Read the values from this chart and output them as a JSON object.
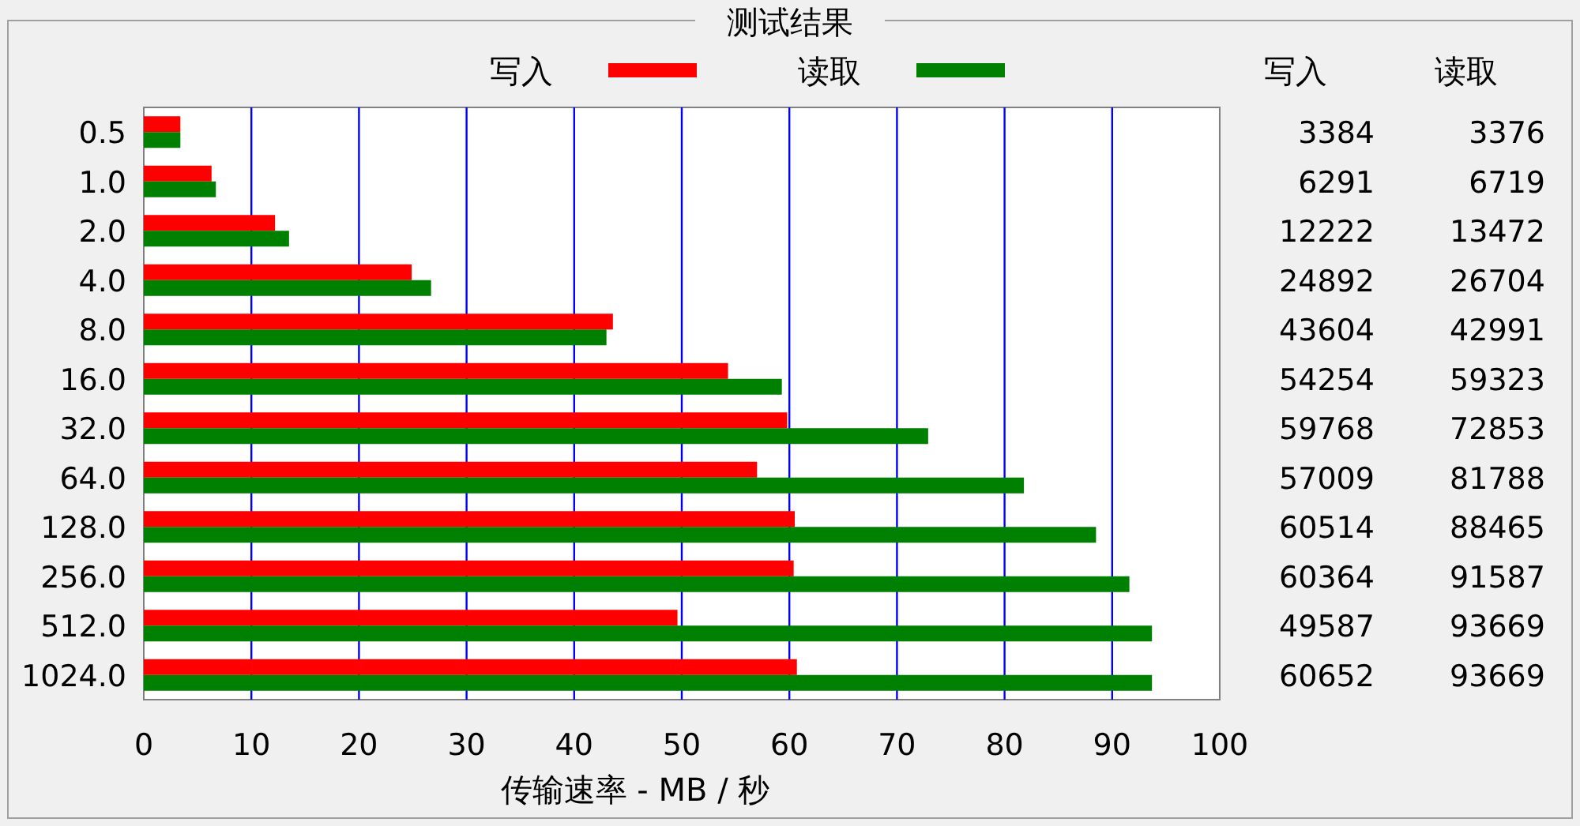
{
  "chart_data": [
    {
      "type": "bar",
      "orientation": "horizontal",
      "title": "测试结果",
      "xlabel": "传输速率 - MB / 秒",
      "categories": [
        "0.5",
        "1.0",
        "2.0",
        "4.0",
        "8.0",
        "16.0",
        "32.0",
        "64.0",
        "128.0",
        "256.0",
        "512.0",
        "1024.0"
      ],
      "series": [
        {
          "name": "写入",
          "color": "#ff0000",
          "values": [
            3.4,
            6.3,
            12.2,
            24.9,
            43.6,
            54.3,
            59.8,
            57.0,
            60.5,
            60.4,
            49.6,
            60.7
          ]
        },
        {
          "name": "读取",
          "color": "#008000",
          "values": [
            3.4,
            6.7,
            13.5,
            26.7,
            43.0,
            59.3,
            72.9,
            81.8,
            88.5,
            91.6,
            93.7,
            93.7
          ]
        }
      ],
      "xlim": [
        0,
        100
      ],
      "xticks": [
        0,
        10,
        20,
        30,
        40,
        50,
        60,
        70,
        80,
        90,
        100
      ],
      "grid": "x",
      "legend": "top"
    },
    {
      "type": "other",
      "categories": [
        "写入",
        "读取"
      ],
      "annotations": [
        "3384",
        "3376",
        "6291",
        "6719",
        "12222",
        "13472",
        "24892",
        "26704",
        "43604",
        "42991",
        "54254",
        "59323",
        "59768",
        "72853",
        "57009",
        "81788",
        "60514",
        "88465",
        "60364",
        "91587",
        "49587",
        "93669",
        "60652",
        "93669"
      ]
    }
  ]
}
